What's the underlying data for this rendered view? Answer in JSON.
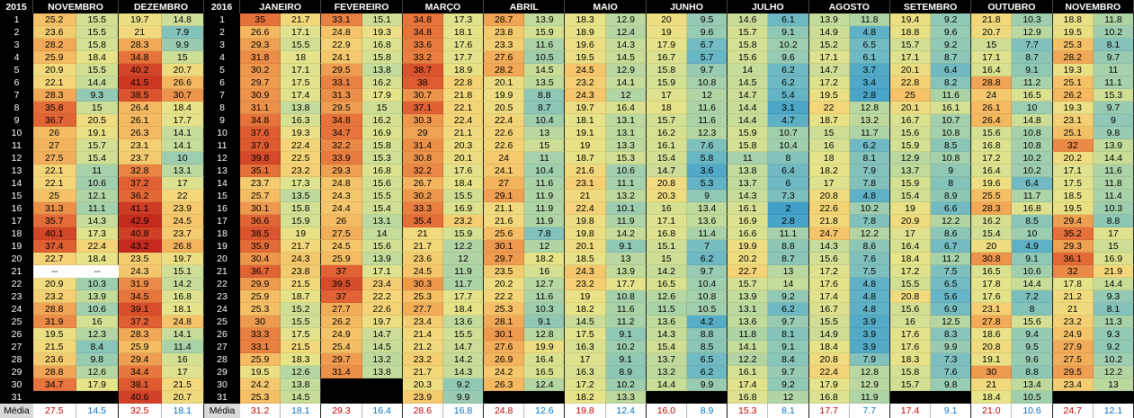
{
  "days": [
    1,
    2,
    3,
    4,
    5,
    6,
    7,
    8,
    9,
    10,
    11,
    12,
    13,
    14,
    15,
    16,
    17,
    18,
    19,
    20,
    21,
    22,
    23,
    24,
    25,
    26,
    27,
    28,
    29,
    30,
    31
  ],
  "average_label": "Média",
  "years": [
    {
      "year": "2015",
      "months": [
        {
          "name": "NOVEMBRO",
          "max": [
            25.2,
            23.6,
            28.2,
            25.9,
            20.9,
            22.1,
            28.3,
            35.8,
            36.7,
            26,
            27,
            27.5,
            22.1,
            22.1,
            25,
            31.3,
            35.7,
            40.1,
            37.4,
            22.7,
            "--",
            20.9,
            23.2,
            28.8,
            31.9,
            19.5,
            21.5,
            23.6,
            28.8,
            34.7,
            null
          ],
          "min": [
            15.5,
            15.5,
            15.8,
            18.4,
            15.5,
            14.4,
            9.3,
            15,
            20.5,
            19.1,
            15.7,
            15.4,
            11,
            10.6,
            12.1,
            11.1,
            14.3,
            17.3,
            22.4,
            18.4,
            "--",
            10.3,
            13.9,
            10.6,
            16,
            12.3,
            8.4,
            9.8,
            12.6,
            17.9,
            null
          ],
          "avg_max": "27.5",
          "avg_min": "14.5"
        },
        {
          "name": "DEZEMBRO",
          "max": [
            19.7,
            21,
            28.3,
            34.8,
            40.2,
            41.5,
            38.5,
            26.4,
            26.1,
            26.3,
            23.1,
            23.7,
            32.8,
            37.2,
            36.2,
            41.1,
            42.9,
            40.8,
            43.2,
            23.5,
            24.3,
            31.9,
            34.5,
            39.1,
            37.2,
            28.3,
            25.9,
            29.4,
            34.4,
            38.1,
            40.6
          ],
          "min": [
            14.8,
            7.9,
            9.9,
            15,
            20.7,
            26.6,
            30.7,
            18.4,
            17.7,
            14.1,
            14.1,
            10,
            13.1,
            17,
            22,
            23.9,
            24.5,
            23.7,
            26.8,
            19.7,
            15.1,
            14.2,
            16.8,
            18.1,
            24.8,
            14.1,
            11.4,
            16,
            17,
            21.5,
            20.7
          ],
          "avg_max": "32.5",
          "avg_min": "18.1"
        }
      ]
    },
    {
      "year": "2016",
      "months": [
        {
          "name": "JANEIRO",
          "max": [
            35,
            26.6,
            29.3,
            31.8,
            30.2,
            29.7,
            30.9,
            31.1,
            34.8,
            37.6,
            37.9,
            39.8,
            35.1,
            23.7,
            25.7,
            30.1,
            36.6,
            38.5,
            35.9,
            30.4,
            36.7,
            29.9,
            25.9,
            25.3,
            30,
            33.3,
            33.1,
            25.9,
            19.5,
            24.2,
            25.3
          ],
          "min": [
            21.7,
            17.1,
            15.5,
            18,
            17.1,
            17.5,
            17.4,
            13.8,
            16.3,
            19.3,
            22.4,
            22.5,
            23.2,
            17.3,
            13.5,
            15.8,
            15.9,
            19,
            21.7,
            24.3,
            23.8,
            21.5,
            18.7,
            15.2,
            15.5,
            17.5,
            21.5,
            18.3,
            12.6,
            13.8,
            14.5
          ],
          "avg_max": "31.2",
          "avg_min": "18.1"
        },
        {
          "name": "FEVEREIRO",
          "max": [
            33.1,
            24.8,
            22.9,
            24.1,
            29.5,
            33.1,
            31.3,
            29.5,
            34.8,
            34.7,
            32.2,
            33.9,
            29.3,
            24.8,
            24.3,
            24.4,
            26,
            27.5,
            24.5,
            25.9,
            37,
            39.5,
            37,
            27.7,
            26.2,
            24.9,
            25.4,
            29.7,
            31.4,
            null,
            null
          ],
          "min": [
            15.1,
            19.3,
            16.8,
            15.8,
            13.8,
            16.2,
            17.9,
            15,
            16.2,
            16.9,
            15.8,
            15.3,
            16.8,
            15.6,
            15.5,
            15.4,
            13.1,
            14,
            15.6,
            13.9,
            17.1,
            23.4,
            22.2,
            22.6,
            19.7,
            14.7,
            14.5,
            13.2,
            13.8,
            null,
            null
          ],
          "avg_max": "29.3",
          "avg_min": "16.4"
        },
        {
          "name": "MARÇO",
          "max": [
            34.8,
            34.8,
            33.6,
            33.2,
            38.7,
            38,
            30.7,
            37.1,
            30.3,
            29,
            31.4,
            30.8,
            32.2,
            26.7,
            30.2,
            33.3,
            35.4,
            21,
            21.7,
            23.6,
            24.5,
            30.3,
            25.3,
            27.7,
            23.4,
            21.4,
            21.2,
            23.2,
            21.7,
            20.3,
            23.9
          ],
          "min": [
            17.3,
            18.1,
            17.6,
            17.7,
            18.9,
            22.8,
            21.8,
            22.1,
            22.4,
            21.1,
            20.3,
            20.1,
            17.6,
            18.4,
            15.5,
            16.9,
            23.2,
            15.9,
            12.2,
            12,
            11.9,
            11.7,
            17.7,
            18.4,
            13.6,
            15.5,
            14.7,
            14.2,
            14.3,
            9.2,
            9.9
          ],
          "avg_max": "28.6",
          "avg_min": "16.8"
        },
        {
          "name": "ABRIL",
          "max": [
            28.7,
            23.8,
            23.3,
            27.6,
            28.2,
            20.1,
            19.9,
            20.5,
            22.4,
            22.6,
            22.6,
            24,
            24.1,
            27,
            29.1,
            21.1,
            21.6,
            25.6,
            30.1,
            29.7,
            23.5,
            20.2,
            22.2,
            25.3,
            28.1,
            30.1,
            27.6,
            26.9,
            24.2,
            26.3,
            null
          ],
          "min": [
            13.9,
            15.9,
            11.6,
            10.5,
            14.5,
            13.5,
            8.8,
            8.7,
            10.4,
            13,
            15,
            11,
            10.4,
            11.6,
            11.9,
            11.9,
            11.9,
            7.8,
            12,
            18.2,
            16,
            12.7,
            11.6,
            10.3,
            9.1,
            12.8,
            19.9,
            16.4,
            16.5,
            12.4,
            null
          ],
          "avg_max": "24.8",
          "avg_min": "12.6"
        },
        {
          "name": "MAIO",
          "max": [
            18.3,
            18.9,
            19.6,
            19.5,
            24.5,
            23.2,
            24.3,
            19.7,
            18.1,
            19.1,
            19,
            18.7,
            21.6,
            23.1,
            21,
            22.4,
            19.8,
            19.8,
            20.1,
            18.5,
            24.3,
            23.2,
            19,
            18.2,
            14.5,
            17.5,
            16.3,
            17,
            16.3,
            17.2,
            18.2
          ],
          "min": [
            12.9,
            12.4,
            14.3,
            14.5,
            12.9,
            14.1,
            12,
            16.4,
            13.1,
            13.1,
            13.3,
            15.3,
            10.6,
            11.1,
            13.2,
            10.1,
            11.9,
            14.2,
            9.1,
            13,
            13.9,
            17.7,
            10.8,
            11.6,
            11.2,
            9.1,
            10.2,
            9.1,
            8.9,
            10.2,
            13.3
          ],
          "avg_max": "19.8",
          "avg_min": "12.4"
        },
        {
          "name": "JUNHO",
          "max": [
            20,
            19,
            17.9,
            16.7,
            15.8,
            15.9,
            17,
            18,
            15.7,
            16.2,
            16.1,
            15.4,
            14.7,
            20.8,
            20.3,
            16,
            17.1,
            16.8,
            15.1,
            15,
            14.2,
            16.5,
            12.6,
            11.5,
            13.6,
            14.3,
            15.4,
            13.7,
            13.2,
            14.4,
            null
          ],
          "min": [
            9.5,
            9.6,
            6.7,
            5.7,
            9.7,
            10.8,
            12,
            11.6,
            11.6,
            12.3,
            7.6,
            5.8,
            3.6,
            5.3,
            9,
            13.4,
            13.6,
            11.4,
            7,
            6.2,
            9.7,
            10.4,
            10.8,
            10.5,
            4.2,
            8.8,
            8.5,
            6.5,
            6.2,
            9.9,
            null
          ],
          "avg_max": "16.0",
          "avg_min": "8.9"
        },
        {
          "name": "JULHO",
          "max": [
            14.6,
            15.7,
            15.8,
            15.6,
            14,
            14.5,
            14.7,
            14.4,
            14.4,
            15.9,
            15.8,
            11,
            13.8,
            13.7,
            14.3,
            16.1,
            16.9,
            16.6,
            19.9,
            20.2,
            22.7,
            15.7,
            13.9,
            13.1,
            13.6,
            11.8,
            14.1,
            12.2,
            16.1,
            17.4,
            16.8
          ],
          "min": [
            6.1,
            9.1,
            10.2,
            9.6,
            6.2,
            6.2,
            5.4,
            3.1,
            4.7,
            10.7,
            10.4,
            8,
            6.4,
            6,
            7.3,
            2,
            2.8,
            11.1,
            8.8,
            8.7,
            13,
            14,
            9.2,
            6.2,
            9.7,
            8.1,
            9.1,
            8.4,
            9.7,
            9.2,
            12
          ],
          "avg_max": "15.3",
          "avg_min": "8.1"
        },
        {
          "name": "AGOSTO",
          "max": [
            13.9,
            14.9,
            15.2,
            17.1,
            14.7,
            17.2,
            19.5,
            22,
            18.7,
            15,
            16,
            18,
            18.2,
            17,
            20.8,
            22.6,
            21.8,
            24.7,
            14.3,
            15.6,
            17.2,
            17.6,
            17.4,
            16.7,
            15.5,
            14.9,
            18.4,
            20.8,
            22.4,
            17.9,
            16.8
          ],
          "min": [
            11.8,
            4.8,
            6.5,
            6.1,
            3.7,
            3.4,
            2.8,
            12.8,
            13.2,
            11.7,
            6.2,
            8.1,
            7.9,
            7.8,
            4.8,
            10.2,
            7.8,
            12.2,
            8.6,
            7.6,
            7.5,
            4.8,
            4.8,
            4.8,
            3.9,
            3.9,
            3.9,
            7.9,
            12.8,
            12.9,
            11.9
          ],
          "avg_max": "17.7",
          "avg_min": "7.7"
        },
        {
          "name": "SETEMBRO",
          "max": [
            19.4,
            18.8,
            15.7,
            17.1,
            20.1,
            22.8,
            25,
            20.1,
            16.7,
            15.6,
            15.9,
            12.9,
            13.7,
            15.9,
            15.4,
            19,
            20.9,
            17,
            16.4,
            18.4,
            17.2,
            15.5,
            20.8,
            15.6,
            16,
            17.6,
            17.6,
            18.3,
            15.8,
            15.7,
            null
          ],
          "min": [
            9.2,
            9.6,
            9.2,
            8.7,
            6.4,
            8.2,
            11.6,
            16.1,
            10.7,
            10.8,
            8.5,
            10.8,
            9,
            8,
            8.9,
            6.6,
            12.2,
            8.6,
            6.7,
            11.2,
            7.5,
            6.5,
            5.6,
            6.9,
            12.5,
            8.3,
            9.9,
            7.3,
            7.6,
            9.8,
            null
          ],
          "avg_max": "17.4",
          "avg_min": "9.1"
        },
        {
          "name": "OUTUBRO",
          "max": [
            21.8,
            20.7,
            15,
            17.1,
            16.4,
            28.8,
            24,
            26.1,
            26.4,
            15.6,
            16.8,
            17.2,
            16.4,
            19.6,
            25.5,
            28.3,
            16.2,
            15.4,
            20,
            30.8,
            16.5,
            17.8,
            17.6,
            23.1,
            27.8,
            18.6,
            20.8,
            19.1,
            30,
            21,
            18.4
          ],
          "min": [
            10.3,
            12.9,
            7.7,
            8.7,
            9.1,
            11.2,
            16.5,
            10,
            14.8,
            10.8,
            10.8,
            10.2,
            10.2,
            6.4,
            11.7,
            16.8,
            8.5,
            10,
            4.9,
            9.1,
            10.6,
            14.4,
            7.2,
            8,
            15.6,
            9.4,
            9.5,
            9.6,
            8.8,
            13.4,
            10.5
          ],
          "avg_max": "21.0",
          "avg_min": "10.6"
        },
        {
          "name": "NOVEMBRO",
          "max": [
            18.8,
            19.5,
            25.3,
            28.2,
            19.3,
            25.1,
            26.2,
            19.3,
            23.1,
            25.1,
            32,
            20.2,
            17.1,
            17.5,
            18.5,
            19.5,
            29.4,
            35.2,
            29.3,
            36.1,
            32,
            17.8,
            21.2,
            21,
            23.2,
            24.9,
            27.9,
            27.5,
            29.5,
            23.4,
            null
          ],
          "min": [
            11.8,
            10.2,
            8.1,
            9.7,
            11,
            11.1,
            15.3,
            9.7,
            9,
            9.8,
            13.9,
            14.4,
            11.6,
            11.8,
            11.4,
            10.3,
            8.8,
            17,
            15,
            16.9,
            21.9,
            14.4,
            9.3,
            8.1,
            11.3,
            9.3,
            9.2,
            10.2,
            12.2,
            13,
            null
          ],
          "avg_max": "24.7",
          "avg_min": "12.1"
        }
      ]
    }
  ]
}
